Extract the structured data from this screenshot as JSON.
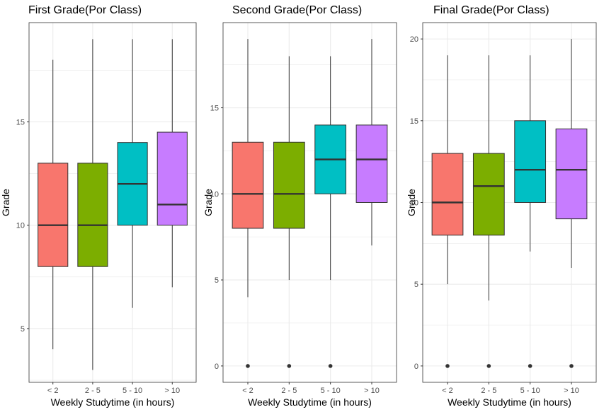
{
  "chart_data": [
    {
      "type": "box",
      "title": "First Grade(Por Class)",
      "xlabel": "Weekly Studytime (in hours)",
      "ylabel": "Grade",
      "ylim": [
        2.4,
        19.8
      ],
      "yticks": [
        5,
        10,
        15
      ],
      "categories": [
        "< 2",
        "2 - 5",
        "5 - 10",
        "> 10"
      ],
      "boxes": [
        {
          "min": 4,
          "q1": 8,
          "median": 10,
          "q3": 13,
          "max": 18,
          "outliers": []
        },
        {
          "min": 3,
          "q1": 8,
          "median": 10,
          "q3": 13,
          "max": 19,
          "outliers": []
        },
        {
          "min": 6,
          "q1": 10,
          "median": 12,
          "q3": 14,
          "max": 19,
          "outliers": []
        },
        {
          "min": 7,
          "q1": 10,
          "median": 11,
          "q3": 14.5,
          "max": 19,
          "outliers": []
        }
      ]
    },
    {
      "type": "box",
      "title": "Second Grade(Por Class)",
      "xlabel": "Weekly Studytime (in hours)",
      "ylabel": "Grade",
      "ylim": [
        -0.95,
        19.95
      ],
      "yticks": [
        0,
        5,
        10,
        15
      ],
      "categories": [
        "< 2",
        "2 - 5",
        "5 - 10",
        "> 10"
      ],
      "boxes": [
        {
          "min": 4,
          "q1": 8,
          "median": 10,
          "q3": 13,
          "max": 19,
          "outliers": [
            0
          ]
        },
        {
          "min": 5,
          "q1": 8,
          "median": 10,
          "q3": 13,
          "max": 18,
          "outliers": [
            0
          ]
        },
        {
          "min": 5,
          "q1": 10,
          "median": 12,
          "q3": 14,
          "max": 18,
          "outliers": [
            0
          ]
        },
        {
          "min": 7,
          "q1": 9.5,
          "median": 12,
          "q3": 14,
          "max": 19,
          "outliers": []
        }
      ]
    },
    {
      "type": "box",
      "title": "Final Grade(Por Class)",
      "xlabel": "Weekly Studytime (in hours)",
      "ylabel": "Grade",
      "ylim": [
        -1,
        21
      ],
      "yticks": [
        0,
        5,
        10,
        15,
        20
      ],
      "categories": [
        "< 2",
        "2 - 5",
        "5 - 10",
        "> 10"
      ],
      "boxes": [
        {
          "min": 5,
          "q1": 8,
          "median": 10,
          "q3": 13,
          "max": 19,
          "outliers": [
            0
          ]
        },
        {
          "min": 4,
          "q1": 8,
          "median": 11,
          "q3": 13,
          "max": 19,
          "outliers": [
            0
          ]
        },
        {
          "min": 7,
          "q1": 10,
          "median": 12,
          "q3": 15,
          "max": 19,
          "outliers": [
            0
          ]
        },
        {
          "min": 6,
          "q1": 9,
          "median": 12,
          "q3": 14.5,
          "max": 20,
          "outliers": [
            0
          ]
        }
      ]
    }
  ],
  "colors": {
    "fills": [
      "#F8766D",
      "#7CAE00",
      "#00BFC4",
      "#C77CFF"
    ],
    "grid": "#ebebeb",
    "panel_border": "#333333",
    "box_line": "#333333"
  }
}
